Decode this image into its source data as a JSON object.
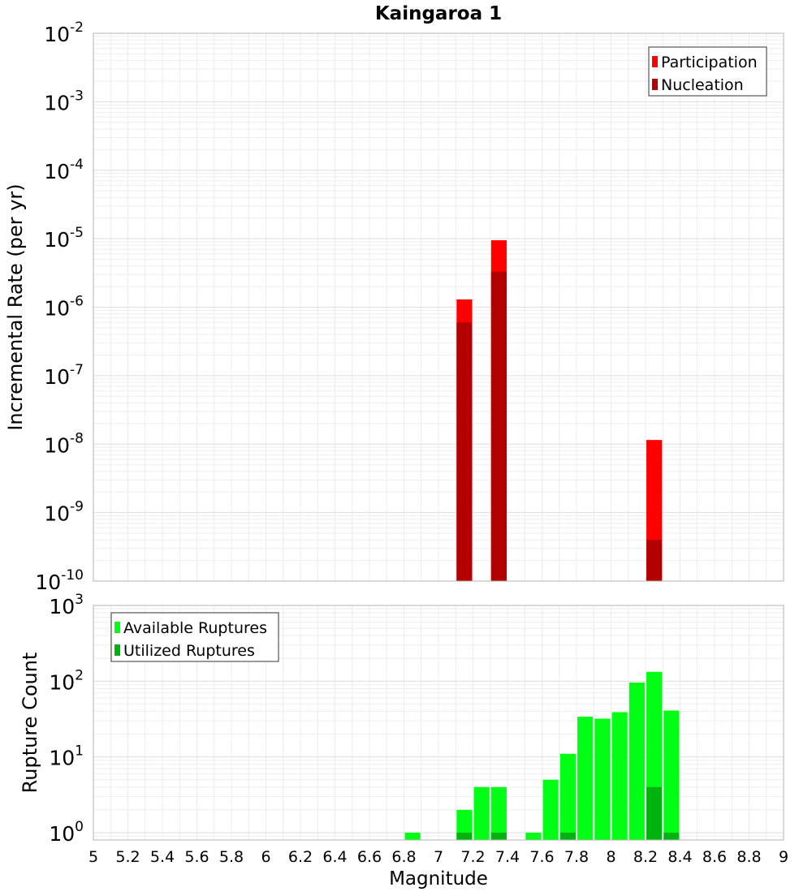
{
  "chart_data": [
    {
      "type": "bar",
      "title": "Kaingaroa 1",
      "xlabel": "",
      "ylabel": "Incremental Rate (per yr)",
      "yscale": "log",
      "ylim_exp": [
        -10,
        -2
      ],
      "y_tick_exponents": [
        "-10",
        "-9",
        "-8",
        "-7",
        "-6",
        "-5",
        "-4",
        "-3",
        "-2"
      ],
      "xlim": [
        5,
        9
      ],
      "bar_width": 0.09,
      "grid": true,
      "legend_placement": "top-right",
      "series": [
        {
          "name": "Participation",
          "color": "#ff0000",
          "points": [
            {
              "x": 7.15,
              "y": 1.3e-06
            },
            {
              "x": 7.35,
              "y": 9.5e-06
            },
            {
              "x": 8.25,
              "y": 1.15e-08
            }
          ]
        },
        {
          "name": "Nucleation",
          "color": "#b30000",
          "points": [
            {
              "x": 7.15,
              "y": 6e-07
            },
            {
              "x": 7.35,
              "y": 3.3e-06
            },
            {
              "x": 8.25,
              "y": 4e-10
            }
          ]
        }
      ]
    },
    {
      "type": "bar",
      "title": "",
      "xlabel": "Magnitude",
      "ylabel": "Rupture Count",
      "yscale": "log",
      "ylim": [
        0.8,
        1000
      ],
      "y_tick_exponents": [
        "0",
        "1",
        "2",
        "3"
      ],
      "xlim": [
        5,
        9
      ],
      "x_ticks": [
        "5",
        "5.2",
        "5.4",
        "5.6",
        "5.8",
        "6",
        "6.2",
        "6.4",
        "6.6",
        "6.8",
        "7",
        "7.2",
        "7.4",
        "7.6",
        "7.8",
        "8",
        "8.2",
        "8.4",
        "8.6",
        "8.8",
        "9"
      ],
      "bar_width": 0.09,
      "grid": true,
      "legend_placement": "top-left",
      "series": [
        {
          "name": "Available Ruptures",
          "color": "#00ff14",
          "points": [
            {
              "x": 6.85,
              "y": 1
            },
            {
              "x": 7.15,
              "y": 2
            },
            {
              "x": 7.25,
              "y": 4
            },
            {
              "x": 7.35,
              "y": 4
            },
            {
              "x": 7.55,
              "y": 1
            },
            {
              "x": 7.65,
              "y": 5
            },
            {
              "x": 7.75,
              "y": 11
            },
            {
              "x": 7.85,
              "y": 34
            },
            {
              "x": 7.95,
              "y": 32
            },
            {
              "x": 8.05,
              "y": 39
            },
            {
              "x": 8.15,
              "y": 96
            },
            {
              "x": 8.25,
              "y": 133
            },
            {
              "x": 8.35,
              "y": 41
            }
          ]
        },
        {
          "name": "Utilized Ruptures",
          "color": "#00b30e",
          "points": [
            {
              "x": 7.15,
              "y": 1
            },
            {
              "x": 7.35,
              "y": 1
            },
            {
              "x": 7.75,
              "y": 1
            },
            {
              "x": 8.25,
              "y": 4
            },
            {
              "x": 8.35,
              "y": 1
            }
          ]
        }
      ]
    }
  ]
}
